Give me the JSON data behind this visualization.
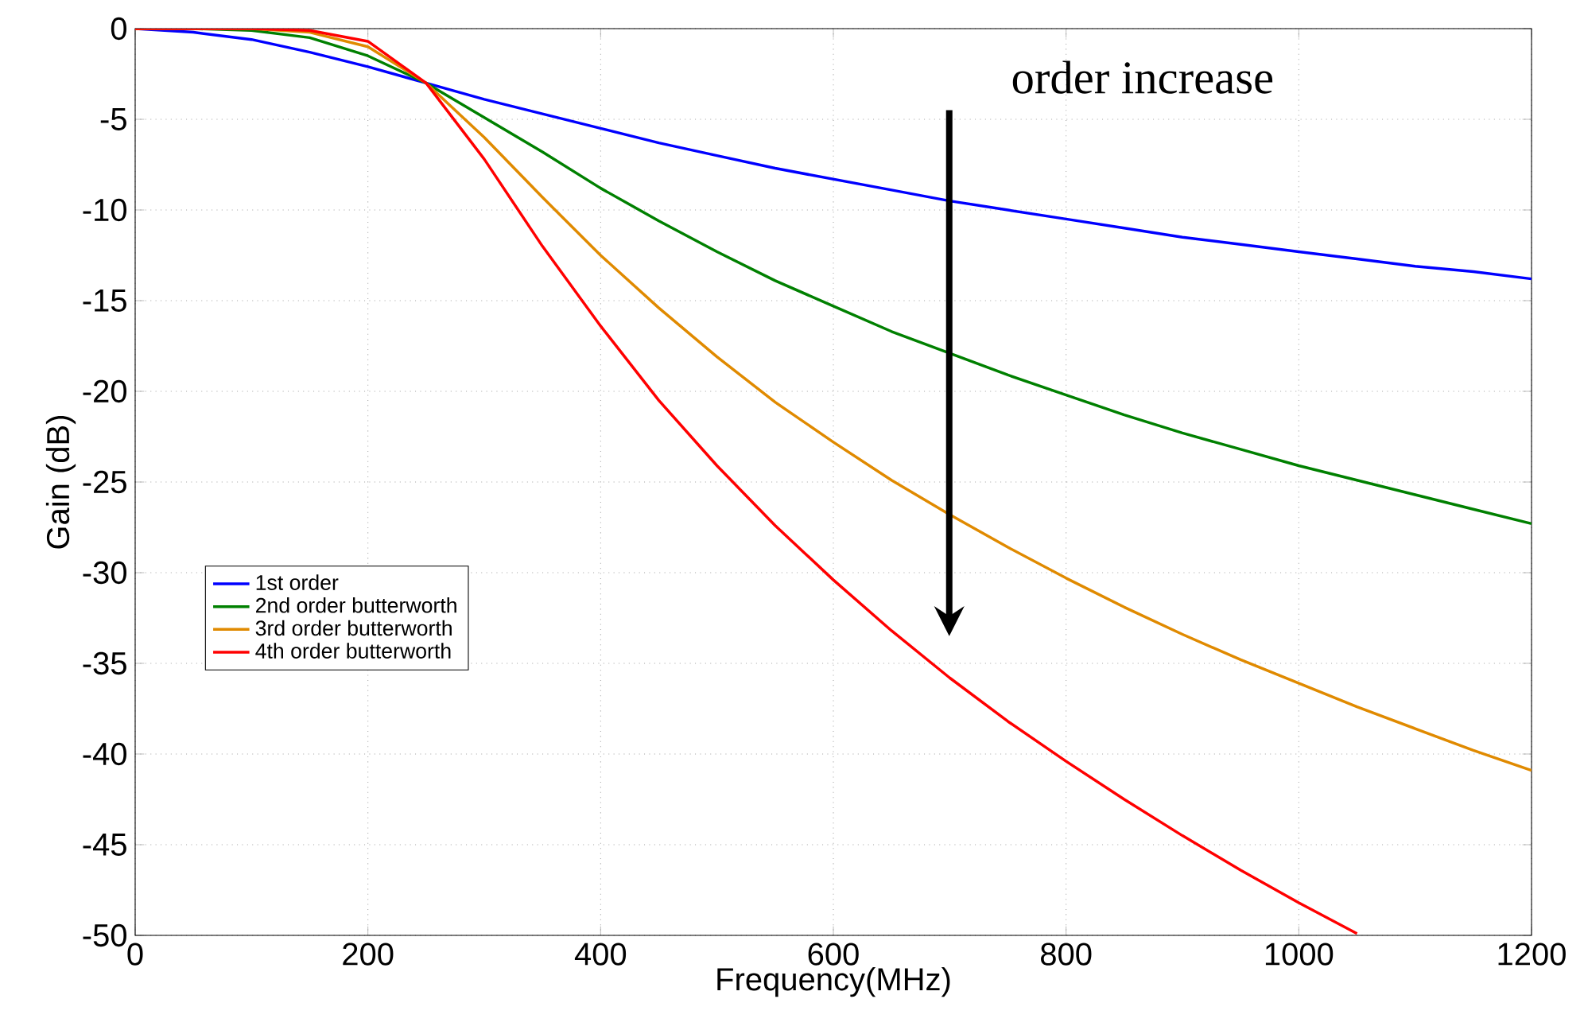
{
  "chart_data": {
    "type": "line",
    "xlabel": "Frequency(MHz)",
    "ylabel": "Gain (dB)",
    "x": [
      0,
      50,
      100,
      150,
      200,
      250,
      300,
      350,
      400,
      450,
      500,
      550,
      600,
      650,
      700,
      750,
      800,
      850,
      900,
      950,
      1000,
      1050,
      1100,
      1150,
      1200
    ],
    "series": [
      {
        "name": "1st order",
        "color": "#0000ff",
        "values": [
          0,
          -0.2,
          -0.6,
          -1.3,
          -2.1,
          -3.0,
          -3.9,
          -4.7,
          -5.5,
          -6.3,
          -7.0,
          -7.7,
          -8.3,
          -8.9,
          -9.5,
          -10.0,
          -10.5,
          -11.0,
          -11.5,
          -11.9,
          -12.3,
          -12.7,
          -13.1,
          -13.4,
          -13.8
        ]
      },
      {
        "name": "2nd order butterworth",
        "color": "#008000",
        "values": [
          0,
          0,
          -0.1,
          -0.5,
          -1.5,
          -3.0,
          -4.9,
          -6.8,
          -8.8,
          -10.6,
          -12.3,
          -13.9,
          -15.3,
          -16.7,
          -17.9,
          -19.1,
          -20.2,
          -21.3,
          -22.3,
          -23.2,
          -24.1,
          -24.9,
          -25.7,
          -26.5,
          -27.3
        ]
      },
      {
        "name": "3rd order butterworth",
        "color": "#e08a00",
        "values": [
          0,
          0,
          0,
          -0.2,
          -1.0,
          -3.0,
          -6.0,
          -9.3,
          -12.5,
          -15.4,
          -18.1,
          -20.6,
          -22.8,
          -24.9,
          -26.8,
          -28.6,
          -30.3,
          -31.9,
          -33.4,
          -34.8,
          -36.1,
          -37.4,
          -38.6,
          -39.8,
          -40.9
        ]
      },
      {
        "name": "4th order butterworth",
        "color": "#ff0000",
        "values": [
          0,
          0,
          0,
          -0.1,
          -0.7,
          -3.0,
          -7.2,
          -12.0,
          -16.4,
          -20.5,
          -24.1,
          -27.4,
          -30.4,
          -33.2,
          -35.8,
          -38.2,
          -40.4,
          -42.5,
          -44.5,
          -46.4,
          -48.2,
          -49.9,
          null,
          null,
          null
        ]
      }
    ],
    "xlim": [
      0,
      1200
    ],
    "xticks": [
      0,
      200,
      400,
      600,
      800,
      1000,
      1200
    ],
    "ylim": [
      -50,
      0
    ],
    "yticks": [
      -50,
      -45,
      -40,
      -35,
      -30,
      -25,
      -20,
      -15,
      -10,
      -5,
      0
    ],
    "grid": true,
    "legend": "left",
    "marker": "none",
    "line_style": "solid",
    "annotations": [
      "order increase"
    ]
  }
}
